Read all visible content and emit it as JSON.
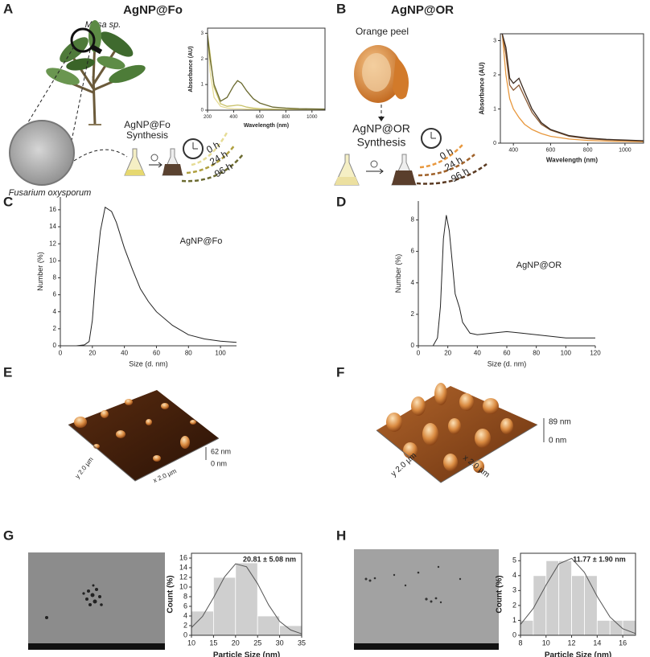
{
  "panels": [
    "A",
    "B",
    "C",
    "D",
    "E",
    "F",
    "G",
    "H"
  ],
  "panel_a": {
    "title": "AgNP@Fo",
    "plant": "Musa sp.",
    "fungus": "Fusarium oxysporum",
    "synthesis": [
      "AgNP@Fo",
      "Synthesis"
    ],
    "times": [
      "0 h",
      "24 h",
      "96 h"
    ]
  },
  "panel_b": {
    "title": "AgNP@OR",
    "source": "Orange peel",
    "synthesis": [
      "AgNP@OR",
      "Synthesis"
    ],
    "times": [
      "0 h",
      "24 h",
      "96 h"
    ]
  },
  "panel_e": {
    "z_max": "62 nm",
    "z_min": "0 nm",
    "x_size": "x 2.0 µm",
    "y_size": "y 2.0 µm"
  },
  "panel_f": {
    "z_max": "89 nm",
    "z_min": "0 nm",
    "x_size": "x 2.0 µm",
    "y_size": "y 2.0 µm"
  },
  "chart_data": [
    {
      "type": "line",
      "xlabel": "Wavelength (nm)",
      "ylabel": "Absorbance (AU)",
      "frame": true,
      "x": [
        200,
        220,
        250,
        300,
        350,
        400,
        430,
        460,
        500,
        550,
        600,
        700,
        800,
        900,
        1000,
        1100
      ],
      "series": [
        {
          "color": "#e6dc96",
          "values": [
            3.0,
            1.5,
            0.5,
            0.15,
            0.08,
            0.06,
            0.05,
            0.05,
            0.04,
            0.04,
            0.03,
            0.03,
            0.02,
            0.02,
            0.02,
            0.02
          ]
        },
        {
          "color": "#c9c26a",
          "values": [
            2.95,
            2.2,
            0.9,
            0.25,
            0.15,
            0.18,
            0.2,
            0.18,
            0.12,
            0.08,
            0.06,
            0.04,
            0.03,
            0.03,
            0.02,
            0.02
          ]
        },
        {
          "color": "#6b6a30",
          "values": [
            2.9,
            2.0,
            1.0,
            0.35,
            0.5,
            0.95,
            1.15,
            1.05,
            0.75,
            0.45,
            0.28,
            0.12,
            0.08,
            0.06,
            0.05,
            0.04
          ]
        }
      ],
      "xlim": [
        200,
        1100
      ],
      "xticks": [
        200,
        400,
        600,
        800,
        1000
      ],
      "ylim": [
        0,
        3.2
      ],
      "yticks": [
        0,
        1,
        2,
        3
      ]
    },
    {
      "type": "line",
      "xlabel": "Wavelength (nm)",
      "ylabel": "Absorbance (AU)",
      "frame": true,
      "x": [
        340,
        360,
        380,
        400,
        430,
        460,
        500,
        550,
        600,
        700,
        800,
        900,
        1000,
        1100
      ],
      "series": [
        {
          "color": "#e8983e",
          "values": [
            3.2,
            2.0,
            1.3,
            1.0,
            0.75,
            0.55,
            0.4,
            0.28,
            0.2,
            0.12,
            0.08,
            0.06,
            0.05,
            0.04
          ]
        },
        {
          "color": "#8a5a34",
          "values": [
            3.2,
            2.6,
            1.7,
            1.55,
            1.7,
            1.35,
            0.9,
            0.55,
            0.38,
            0.2,
            0.13,
            0.1,
            0.08,
            0.06
          ]
        },
        {
          "color": "#3a2a20",
          "values": [
            3.2,
            2.8,
            1.9,
            1.75,
            1.9,
            1.5,
            1.0,
            0.6,
            0.4,
            0.22,
            0.15,
            0.11,
            0.09,
            0.07
          ]
        }
      ],
      "xlim": [
        330,
        1100
      ],
      "xticks": [
        400,
        600,
        800,
        1000
      ],
      "ylim": [
        0,
        3.2
      ],
      "yticks": [
        0,
        1,
        2,
        3
      ]
    },
    {
      "type": "line",
      "xlabel": "Size (d. nm)",
      "ylabel": "Number (%)",
      "annotation": "AgNP@Fo",
      "frame": false,
      "x": [
        10,
        15,
        18,
        20,
        22,
        25,
        28,
        32,
        35,
        40,
        45,
        50,
        55,
        60,
        70,
        80,
        90,
        100,
        110
      ],
      "series": [
        {
          "color": "#222222",
          "values": [
            0,
            0.1,
            0.5,
            3,
            8,
            13.5,
            16.3,
            15.8,
            14.5,
            11.5,
            9,
            6.7,
            5.2,
            4,
            2.4,
            1.3,
            0.8,
            0.55,
            0.4
          ]
        }
      ],
      "xlim": [
        0,
        110
      ],
      "xticks": [
        0,
        20,
        40,
        60,
        80,
        100
      ],
      "ylim": [
        0,
        17.5
      ],
      "yticks": [
        0,
        2,
        4,
        6,
        8,
        10,
        12,
        14,
        16
      ]
    },
    {
      "type": "line",
      "xlabel": "Size (d. nm)",
      "ylabel": "Number (%)",
      "annotation": "AgNP@OR",
      "frame": false,
      "x": [
        10,
        13,
        15,
        17,
        19,
        21,
        23,
        25,
        28,
        30,
        35,
        40,
        50,
        60,
        70,
        80,
        90,
        100,
        110,
        120
      ],
      "series": [
        {
          "color": "#222222",
          "values": [
            0,
            0.5,
            2.5,
            6.8,
            8.3,
            7.3,
            5.3,
            3.3,
            2.4,
            1.5,
            0.8,
            0.7,
            0.8,
            0.9,
            0.8,
            0.7,
            0.6,
            0.5,
            0.5,
            0.5
          ]
        }
      ],
      "xlim": [
        0,
        120
      ],
      "xticks": [
        0,
        20,
        40,
        60,
        80,
        100,
        120
      ],
      "ylim": [
        0,
        9.2
      ],
      "yticks": [
        0,
        2,
        4,
        6,
        8
      ]
    },
    {
      "type": "histogram",
      "xlabel": "Particle Size (nm)",
      "ylabel": "Count (%)",
      "annotation": "20.81 ± 5.08 nm",
      "frame": true,
      "bins": [
        10,
        15,
        20,
        25,
        30,
        35
      ],
      "values": [
        5,
        12,
        15,
        4,
        2
      ],
      "color": "#cfcfcf",
      "fit": {
        "color": "#555555",
        "x": [
          10,
          12.5,
          15,
          17.5,
          20,
          22.5,
          25,
          27.5,
          30,
          32.5,
          35
        ],
        "values": [
          1.6,
          3.9,
          7.8,
          12.1,
          14.8,
          14.2,
          10.7,
          6.3,
          2.9,
          1.1,
          0.3
        ]
      },
      "xlim": [
        10,
        35
      ],
      "xticks": [
        10,
        15,
        20,
        25,
        30,
        35
      ],
      "ylim": [
        0,
        17
      ],
      "yticks": [
        0,
        2,
        4,
        6,
        8,
        10,
        12,
        14,
        16
      ]
    },
    {
      "type": "histogram",
      "xlabel": "Particle Size (nm)",
      "ylabel": "Count (%)",
      "annotation": "11.77 ± 1.90 nm",
      "frame": true,
      "bins": [
        8,
        9,
        10,
        11,
        12,
        13,
        14,
        15,
        16,
        17
      ],
      "values": [
        1,
        4,
        5,
        5,
        4,
        4,
        1,
        1,
        1
      ],
      "color": "#cfcfcf",
      "fit": {
        "color": "#555555",
        "x": [
          8,
          9,
          10,
          11,
          12,
          13,
          14,
          15,
          16,
          17
        ],
        "values": [
          0.72,
          1.8,
          3.37,
          4.79,
          5.16,
          4.22,
          2.61,
          1.23,
          0.44,
          0.12
        ]
      },
      "xlim": [
        8,
        17
      ],
      "xticks": [
        8,
        10,
        12,
        14,
        16
      ],
      "ylim": [
        0,
        5.5
      ],
      "yticks": [
        0,
        1,
        2,
        3,
        4,
        5
      ]
    }
  ]
}
